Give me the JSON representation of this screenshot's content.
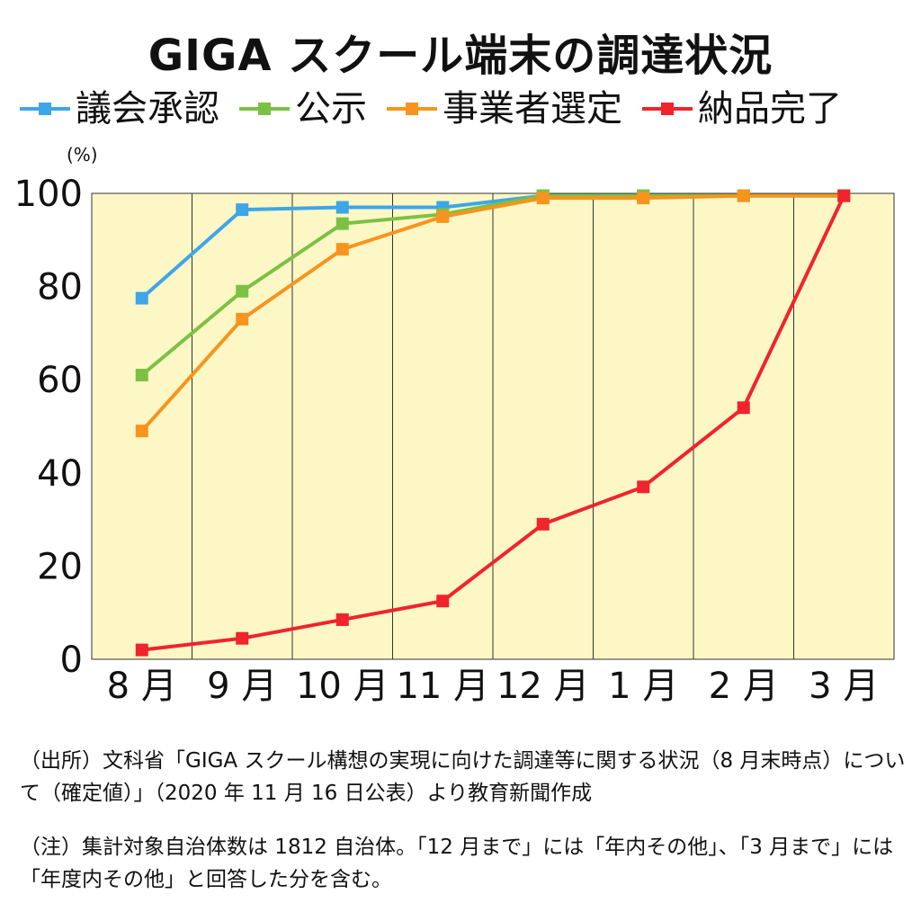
{
  "title": "GIGA スクール端末の調達状況",
  "unit_label": "(%)",
  "colors": {
    "background_plot": "#fdf7c6",
    "grid": "#333333"
  },
  "chart_data": {
    "type": "line",
    "title": "GIGA スクール端末の調達状況",
    "xlabel": "",
    "ylabel": "(%)",
    "categories": [
      "8 月",
      "9 月",
      "10 月",
      "11 月",
      "12 月",
      "1 月",
      "2 月",
      "3 月"
    ],
    "yticks": [
      "0",
      "20",
      "40",
      "60",
      "80",
      "100"
    ],
    "ylim": [
      0,
      100
    ],
    "grid": "vertical lines between months",
    "legend_position": "top",
    "series": [
      {
        "name": "議会承認",
        "color": "#3ea6e8",
        "values": [
          77.5,
          96.5,
          97,
          97,
          99.5,
          99.5,
          99.5,
          99.5
        ]
      },
      {
        "name": "公示",
        "color": "#7cc143",
        "values": [
          61,
          79,
          93.5,
          95.5,
          99.5,
          99.5,
          99.5,
          99.5
        ]
      },
      {
        "name": "事業者選定",
        "color": "#f7941d",
        "values": [
          49,
          73,
          88,
          95,
          99,
          99,
          99.5,
          99.5
        ]
      },
      {
        "name": "納品完了",
        "color": "#f0242c",
        "values": [
          2,
          4.5,
          8.5,
          12.5,
          29,
          37,
          54,
          99.5
        ]
      }
    ]
  },
  "notes": {
    "source": "（出所）文科省「GIGA スクール構想の実現に向けた調達等に関する状況（8 月末時点）について（確定値）」（2020 年 11 月 16 日公表）より教育新聞作成",
    "note": "（注）集計対象自治体数は 1812 自治体。「12 月まで」には「年内その他」、「3 月まで」には「年度内その他」と回答した分を含む。"
  }
}
